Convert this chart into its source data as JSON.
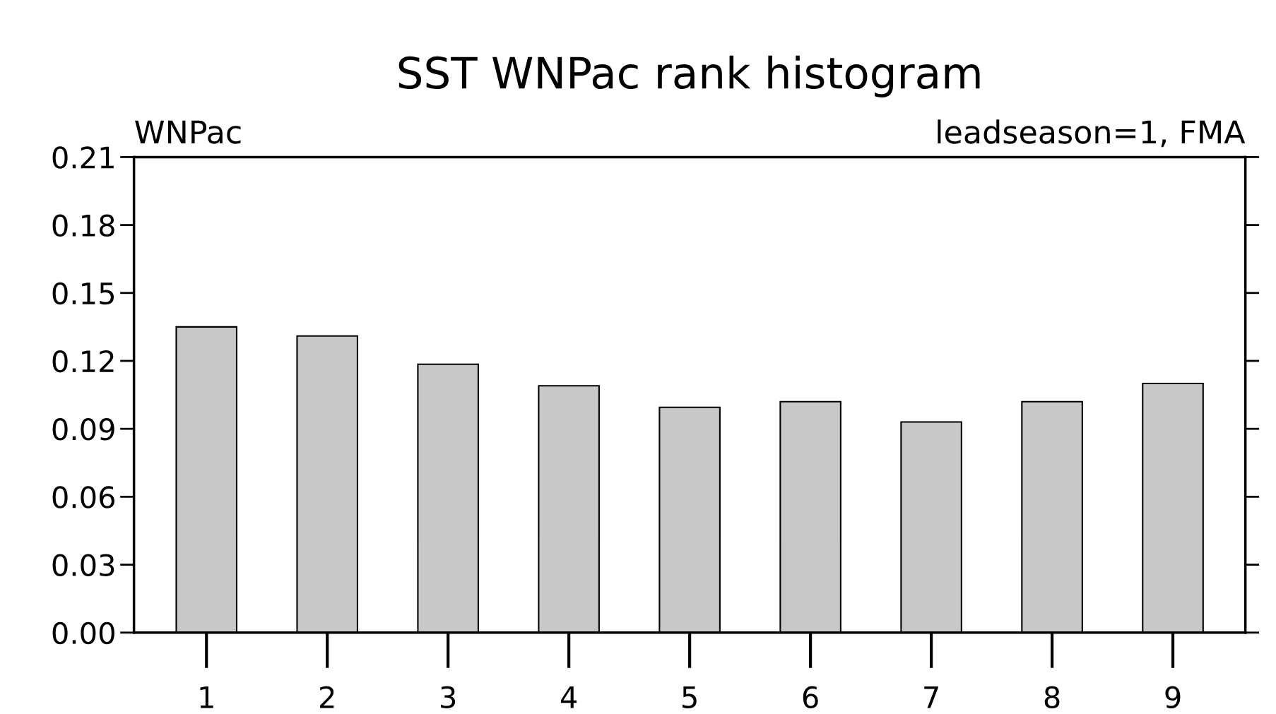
{
  "chart_data": {
    "type": "bar",
    "title": "SST WNPac rank histogram",
    "annotations": [
      "WNPac",
      "leadseason=1, FMA"
    ],
    "categories": [
      "1",
      "2",
      "3",
      "4",
      "5",
      "6",
      "7",
      "8",
      "9"
    ],
    "values": [
      0.135,
      0.131,
      0.1185,
      0.109,
      0.0995,
      0.102,
      0.093,
      0.102,
      0.11
    ],
    "color": "#c8c8c8",
    "ylim": [
      0,
      0.21
    ],
    "yticks": [
      {
        "value": 0,
        "label": "0.00"
      },
      {
        "value": 0.03,
        "label": "0.03"
      },
      {
        "value": 0.06,
        "label": "0.06"
      },
      {
        "value": 0.09,
        "label": "0.09"
      },
      {
        "value": 0.12,
        "label": "0.12"
      },
      {
        "value": 0.15,
        "label": "0.15"
      },
      {
        "value": 0.18,
        "label": "0.18"
      },
      {
        "value": 0.21,
        "label": "0.21"
      }
    ],
    "grid": false
  }
}
